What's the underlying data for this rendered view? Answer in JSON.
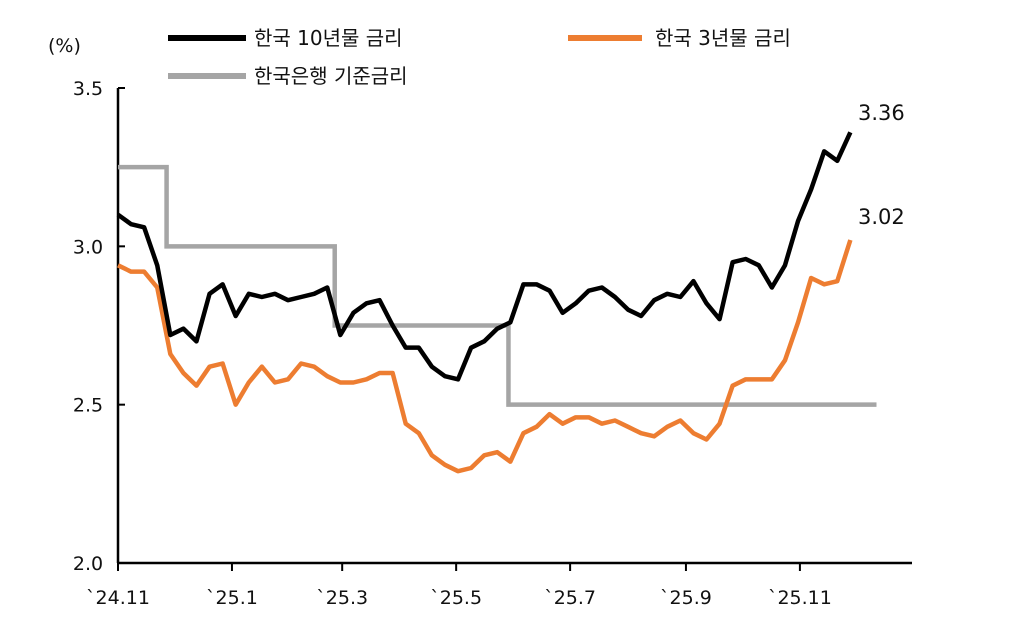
{
  "chart_data": {
    "type": "line",
    "title": "",
    "ylabel": "(%)",
    "xlabel": "",
    "ylim": [
      2.0,
      3.5
    ],
    "yticks": [
      "2.0",
      "2.5",
      "3.0",
      "3.5"
    ],
    "xlim": [
      "2024-11-01",
      "2025-12-31"
    ],
    "xticks": [
      {
        "date": "2024-11-01",
        "label": "`24.11"
      },
      {
        "date": "2025-01-01",
        "label": "`25.1"
      },
      {
        "date": "2025-03-01",
        "label": "`25.3"
      },
      {
        "date": "2025-05-01",
        "label": "`25.5"
      },
      {
        "date": "2025-07-01",
        "label": "`25.7"
      },
      {
        "date": "2025-09-01",
        "label": "`25.9"
      },
      {
        "date": "2025-11-01",
        "label": "`25.11"
      }
    ],
    "grid": false,
    "legend_position": "top",
    "x": [
      "2024-11-01",
      "2024-11-08",
      "2024-11-15",
      "2024-11-22",
      "2024-11-29",
      "2024-12-06",
      "2024-12-13",
      "2024-12-20",
      "2024-12-27",
      "2025-01-03",
      "2025-01-10",
      "2025-01-17",
      "2025-01-24",
      "2025-01-31",
      "2025-02-07",
      "2025-02-14",
      "2025-02-21",
      "2025-02-28",
      "2025-03-07",
      "2025-03-14",
      "2025-03-21",
      "2025-03-28",
      "2025-04-04",
      "2025-04-11",
      "2025-04-18",
      "2025-04-25",
      "2025-05-02",
      "2025-05-09",
      "2025-05-16",
      "2025-05-23",
      "2025-05-30",
      "2025-06-06",
      "2025-06-13",
      "2025-06-20",
      "2025-06-27",
      "2025-07-04",
      "2025-07-11",
      "2025-07-18",
      "2025-07-25",
      "2025-08-01",
      "2025-08-08",
      "2025-08-15",
      "2025-08-22",
      "2025-08-29",
      "2025-09-05",
      "2025-09-12",
      "2025-09-19",
      "2025-09-26",
      "2025-10-03",
      "2025-10-10",
      "2025-10-17",
      "2025-10-24",
      "2025-10-31",
      "2025-11-07",
      "2025-11-14",
      "2025-11-21",
      "2025-11-28"
    ],
    "series": [
      {
        "name": "한국 10년물 금리",
        "color": "#000000",
        "values": [
          3.1,
          3.07,
          3.06,
          2.94,
          2.72,
          2.74,
          2.7,
          2.85,
          2.88,
          2.78,
          2.85,
          2.84,
          2.85,
          2.83,
          2.84,
          2.85,
          2.87,
          2.72,
          2.79,
          2.82,
          2.83,
          2.75,
          2.68,
          2.68,
          2.62,
          2.59,
          2.58,
          2.68,
          2.7,
          2.74,
          2.76,
          2.88,
          2.88,
          2.86,
          2.79,
          2.82,
          2.86,
          2.87,
          2.84,
          2.8,
          2.78,
          2.83,
          2.85,
          2.84,
          2.89,
          2.82,
          2.77,
          2.95,
          2.96,
          2.94,
          2.87,
          2.94,
          3.08,
          3.18,
          3.3,
          3.27,
          3.36
        ],
        "end_label": "3.36"
      },
      {
        "name": "한국 3년물 금리",
        "color": "#ED7D31",
        "values": [
          2.94,
          2.92,
          2.92,
          2.87,
          2.66,
          2.6,
          2.56,
          2.62,
          2.63,
          2.5,
          2.57,
          2.62,
          2.57,
          2.58,
          2.63,
          2.62,
          2.59,
          2.57,
          2.57,
          2.58,
          2.6,
          2.6,
          2.44,
          2.41,
          2.34,
          2.31,
          2.29,
          2.3,
          2.34,
          2.35,
          2.32,
          2.41,
          2.43,
          2.47,
          2.44,
          2.46,
          2.46,
          2.44,
          2.45,
          2.43,
          2.41,
          2.4,
          2.43,
          2.45,
          2.41,
          2.39,
          2.44,
          2.56,
          2.58,
          2.58,
          2.58,
          2.64,
          2.76,
          2.9,
          2.88,
          2.89,
          3.02
        ],
        "end_label": "3.02"
      },
      {
        "name": "한국은행 기준금리",
        "color": "#A5A5A5",
        "step": true,
        "points": [
          {
            "date": "2024-11-01",
            "value": 3.25
          },
          {
            "date": "2024-11-27",
            "value": 3.0
          },
          {
            "date": "2025-02-25",
            "value": 2.75
          },
          {
            "date": "2025-05-29",
            "value": 2.5
          },
          {
            "date": "2025-12-12",
            "value": 2.5
          }
        ]
      }
    ]
  }
}
